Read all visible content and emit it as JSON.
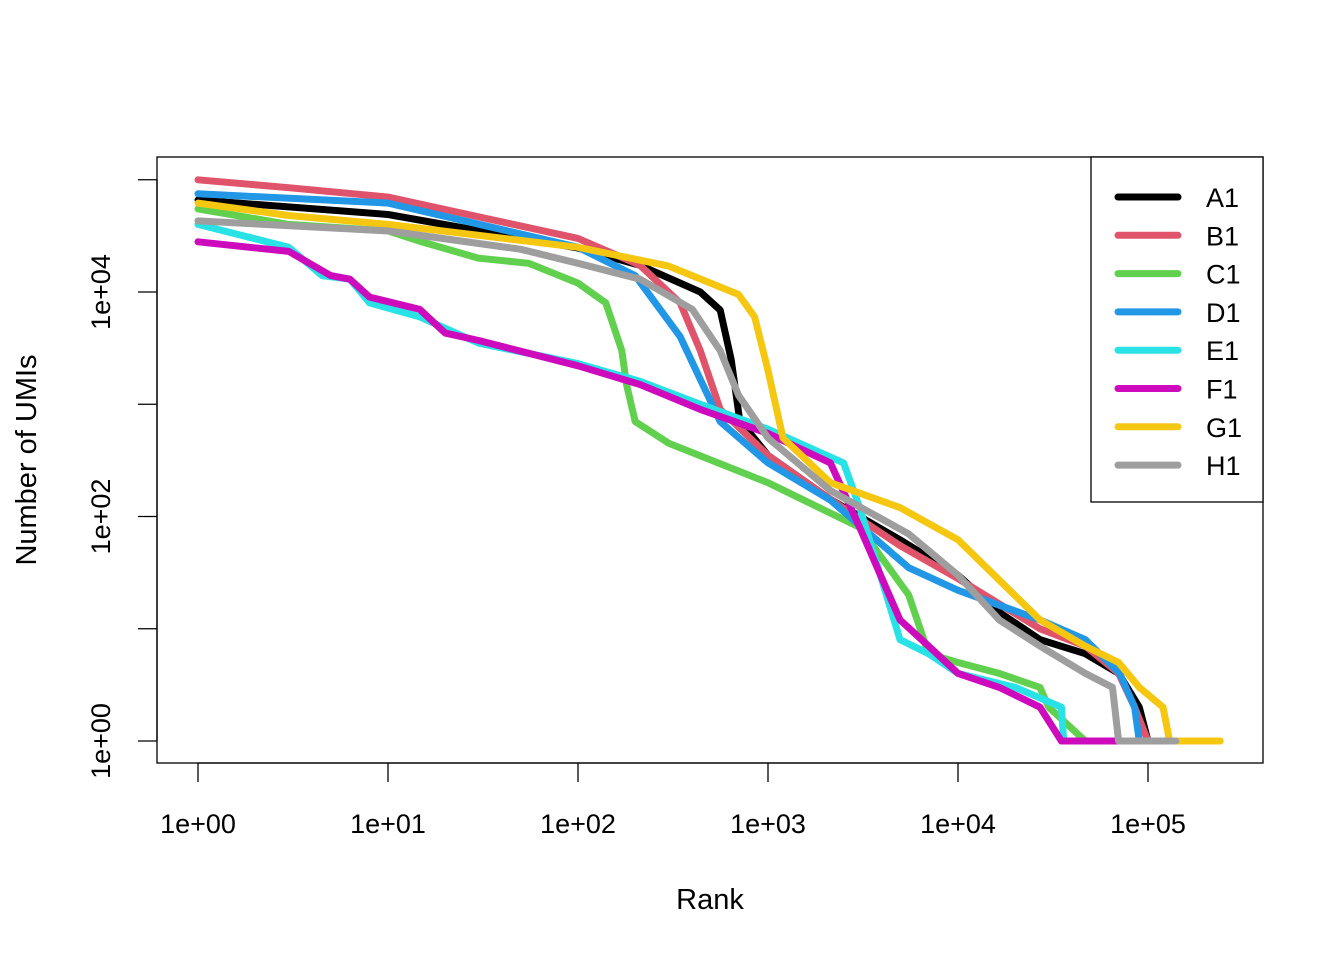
{
  "chart_data": {
    "type": "line",
    "title": "",
    "xlabel": "Rank",
    "ylabel": "Number of UMIs",
    "xscale": "log",
    "yscale": "log",
    "xlim": [
      0.8,
      300000
    ],
    "ylim": [
      0.8,
      130000
    ],
    "x_ticks": [
      1,
      10,
      100,
      1000,
      10000,
      100000
    ],
    "x_tick_labels": [
      "1e+00",
      "1e+01",
      "1e+02",
      "1e+03",
      "1e+04",
      "1e+05"
    ],
    "y_ticks": [
      1,
      10,
      100,
      1000,
      10000,
      100000
    ],
    "y_tick_labels": [
      "1e+00",
      "",
      "1e+02",
      "",
      "1e+04",
      ""
    ],
    "grid": false,
    "legend_position": "top-right",
    "series": [
      {
        "name": "A1",
        "color": "#000000",
        "points": [
          [
            1,
            66000
          ],
          [
            10,
            49000
          ],
          [
            100,
            24600
          ],
          [
            212,
            17300
          ],
          [
            440,
            10000
          ],
          [
            560,
            6900
          ],
          [
            640,
            2500
          ],
          [
            710,
            720
          ],
          [
            1000,
            350
          ],
          [
            2130,
            142
          ],
          [
            4950,
            62
          ],
          [
            10000,
            30
          ],
          [
            16500,
            14
          ],
          [
            27000,
            8
          ],
          [
            46800,
            6
          ],
          [
            70000,
            4
          ],
          [
            90000,
            2
          ],
          [
            100000,
            1
          ],
          [
            176000,
            1
          ]
        ]
      },
      {
        "name": "B1",
        "color": "#DF536B",
        "points": [
          [
            1,
            100000
          ],
          [
            3,
            85000
          ],
          [
            10,
            70000
          ],
          [
            100,
            30000
          ],
          [
            212,
            17300
          ],
          [
            345,
            8000
          ],
          [
            440,
            3000
          ],
          [
            560,
            900
          ],
          [
            1000,
            350
          ],
          [
            2130,
            142
          ],
          [
            4950,
            55
          ],
          [
            10000,
            28
          ],
          [
            27000,
            10
          ],
          [
            46800,
            7
          ],
          [
            70000,
            4
          ],
          [
            85000,
            2
          ],
          [
            100000,
            1
          ],
          [
            176000,
            1
          ]
        ]
      },
      {
        "name": "C1",
        "color": "#61D04F",
        "points": [
          [
            1,
            55000
          ],
          [
            3,
            40000
          ],
          [
            10,
            35000
          ],
          [
            15,
            28000
          ],
          [
            30,
            20000
          ],
          [
            55,
            18000
          ],
          [
            100,
            12000
          ],
          [
            140,
            8000
          ],
          [
            170,
            3000
          ],
          [
            180,
            1500
          ],
          [
            200,
            700
          ],
          [
            300,
            450
          ],
          [
            1000,
            200
          ],
          [
            3040,
            80
          ],
          [
            5500,
            20
          ],
          [
            7000,
            6
          ],
          [
            10000,
            5
          ],
          [
            16500,
            4
          ],
          [
            27000,
            3
          ],
          [
            30000,
            2
          ],
          [
            46800,
            1
          ],
          [
            50000,
            1
          ]
        ]
      },
      {
        "name": "D1",
        "color": "#2297E6",
        "points": [
          [
            1,
            75000
          ],
          [
            10,
            62000
          ],
          [
            100,
            25000
          ],
          [
            200,
            14000
          ],
          [
            345,
            4000
          ],
          [
            560,
            700
          ],
          [
            1000,
            300
          ],
          [
            2130,
            140
          ],
          [
            5500,
            35
          ],
          [
            10000,
            22
          ],
          [
            27000,
            12
          ],
          [
            46800,
            8
          ],
          [
            71000,
            4
          ],
          [
            85000,
            2
          ],
          [
            90000,
            1
          ],
          [
            100000,
            1
          ]
        ]
      },
      {
        "name": "E1",
        "color": "#28E2E5",
        "points": [
          [
            1,
            40000
          ],
          [
            3,
            25000
          ],
          [
            4.5,
            14000
          ],
          [
            6.3,
            13000
          ],
          [
            8,
            8000
          ],
          [
            14.7,
            6000
          ],
          [
            30,
            3500
          ],
          [
            100,
            2300
          ],
          [
            212,
            1600
          ],
          [
            440,
            1000
          ],
          [
            1000,
            600
          ],
          [
            2500,
            300
          ],
          [
            3040,
            120
          ],
          [
            4950,
            8
          ],
          [
            7000,
            6
          ],
          [
            10000,
            4
          ],
          [
            20000,
            3
          ],
          [
            35000,
            2
          ],
          [
            36000,
            1
          ],
          [
            40000,
            1
          ]
        ]
      },
      {
        "name": "F1",
        "color": "#CD0BBC",
        "points": [
          [
            1,
            28000
          ],
          [
            3,
            23000
          ],
          [
            5,
            14000
          ],
          [
            6.3,
            13000
          ],
          [
            8,
            9000
          ],
          [
            14.7,
            7000
          ],
          [
            20,
            4300
          ],
          [
            30,
            3700
          ],
          [
            100,
            2200
          ],
          [
            212,
            1500
          ],
          [
            440,
            900
          ],
          [
            1000,
            550
          ],
          [
            2130,
            300
          ],
          [
            3040,
            80
          ],
          [
            4950,
            12
          ],
          [
            7000,
            7
          ],
          [
            10000,
            4
          ],
          [
            16500,
            3
          ],
          [
            27000,
            2
          ],
          [
            35000,
            1
          ],
          [
            70000,
            1
          ]
        ]
      },
      {
        "name": "G1",
        "color": "#F5C710",
        "points": [
          [
            1,
            62000
          ],
          [
            3,
            48000
          ],
          [
            10,
            40000
          ],
          [
            100,
            25000
          ],
          [
            300,
            17000
          ],
          [
            700,
            9500
          ],
          [
            850,
            6000
          ],
          [
            1000,
            2000
          ],
          [
            1200,
            500
          ],
          [
            2130,
            200
          ],
          [
            4950,
            120
          ],
          [
            10000,
            62
          ],
          [
            27000,
            12
          ],
          [
            46800,
            7
          ],
          [
            70000,
            5
          ],
          [
            90000,
            3
          ],
          [
            120000,
            2
          ],
          [
            130000,
            1
          ],
          [
            240000,
            1
          ]
        ]
      },
      {
        "name": "H1",
        "color": "#9E9E9E",
        "points": [
          [
            1,
            43000
          ],
          [
            10,
            35000
          ],
          [
            50,
            24000
          ],
          [
            100,
            18000
          ],
          [
            212,
            13000
          ],
          [
            400,
            7000
          ],
          [
            560,
            3000
          ],
          [
            700,
            1200
          ],
          [
            1000,
            500
          ],
          [
            2130,
            170
          ],
          [
            5500,
            70
          ],
          [
            10000,
            30
          ],
          [
            16500,
            12
          ],
          [
            27000,
            7
          ],
          [
            46800,
            4
          ],
          [
            65000,
            3
          ],
          [
            70000,
            1
          ],
          [
            140000,
            1
          ]
        ]
      }
    ]
  }
}
